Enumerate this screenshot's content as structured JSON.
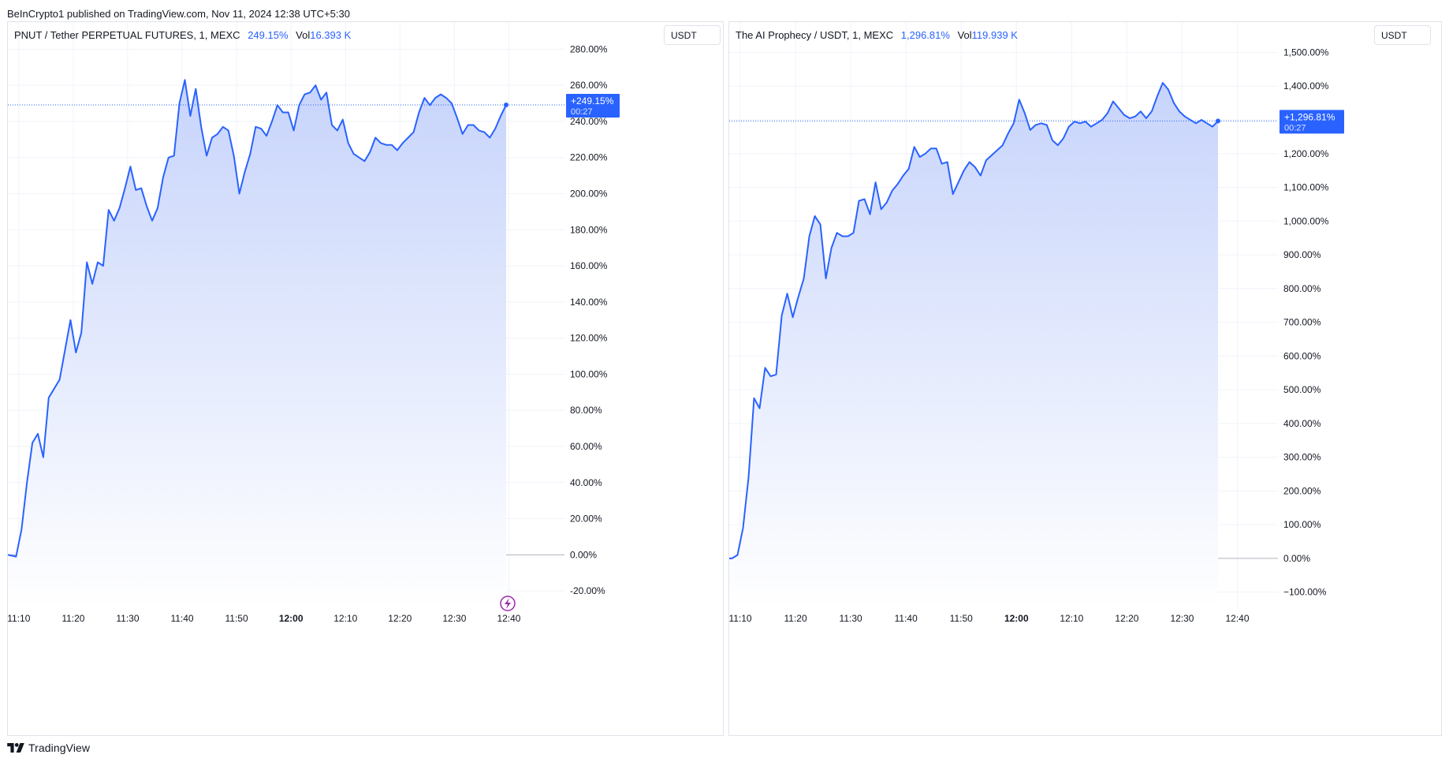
{
  "header": {
    "published": "BeInCrypto1 published on TradingView.com, Nov 11, 2024 12:38 UTC+5:30"
  },
  "footer": {
    "brand": "TradingView"
  },
  "colors": {
    "line": "#2962ff",
    "fill_top": "#c7d4fb",
    "fill_bottom": "#ffffff",
    "grid": "#f0f3fa",
    "axis_text": "#131722",
    "zero_line": "#b2b5be"
  },
  "charts": [
    {
      "legend": {
        "symbol": "PNUT / Tether PERPETUAL FUTURES, 1, MEXC",
        "change": "249.15%",
        "vol_label": "Vol",
        "vol_value": "16.393 K"
      },
      "currency_button": "USDT",
      "price_label": {
        "value": "+249.15%",
        "countdown": "00:27"
      },
      "x_ticks": [
        {
          "t": 10,
          "label": "11:10",
          "bold": false
        },
        {
          "t": 20,
          "label": "11:20",
          "bold": false
        },
        {
          "t": 30,
          "label": "11:30",
          "bold": false
        },
        {
          "t": 40,
          "label": "11:40",
          "bold": false
        },
        {
          "t": 50,
          "label": "11:50",
          "bold": false
        },
        {
          "t": 60,
          "label": "12:00",
          "bold": true
        },
        {
          "t": 70,
          "label": "12:10",
          "bold": false
        },
        {
          "t": 80,
          "label": "12:20",
          "bold": false
        },
        {
          "t": 90,
          "label": "12:30",
          "bold": false
        },
        {
          "t": 100,
          "label": "12:40",
          "bold": false
        }
      ],
      "y_ticks": [
        {
          "v": 280,
          "label": "280.00%"
        },
        {
          "v": 260,
          "label": "260.00%"
        },
        {
          "v": 240,
          "label": "240.00%"
        },
        {
          "v": 220,
          "label": "220.00%"
        },
        {
          "v": 200,
          "label": "200.00%"
        },
        {
          "v": 180,
          "label": "180.00%"
        },
        {
          "v": 160,
          "label": "160.00%"
        },
        {
          "v": 140,
          "label": "140.00%"
        },
        {
          "v": 120,
          "label": "120.00%"
        },
        {
          "v": 100,
          "label": "100.00%"
        },
        {
          "v": 80,
          "label": "80.00%"
        },
        {
          "v": 60,
          "label": "60.00%"
        },
        {
          "v": 40,
          "label": "40.00%"
        },
        {
          "v": 20,
          "label": "20.00%"
        },
        {
          "v": 0,
          "label": "0.00%"
        },
        {
          "v": -20,
          "label": "-20.00%"
        }
      ]
    },
    {
      "legend": {
        "symbol": "The AI Prophecy / USDT, 1, MEXC",
        "change": "1,296.81%",
        "vol_label": "Vol",
        "vol_value": "119.939 K"
      },
      "currency_button": "USDT",
      "price_label": {
        "value": "+1,296.81%",
        "countdown": "00:27"
      },
      "x_ticks": [
        {
          "t": 10,
          "label": "11:10",
          "bold": false
        },
        {
          "t": 20,
          "label": "11:20",
          "bold": false
        },
        {
          "t": 30,
          "label": "11:30",
          "bold": false
        },
        {
          "t": 40,
          "label": "11:40",
          "bold": false
        },
        {
          "t": 50,
          "label": "11:50",
          "bold": false
        },
        {
          "t": 60,
          "label": "12:00",
          "bold": true
        },
        {
          "t": 70,
          "label": "12:10",
          "bold": false
        },
        {
          "t": 80,
          "label": "12:20",
          "bold": false
        },
        {
          "t": 90,
          "label": "12:30",
          "bold": false
        },
        {
          "t": 100,
          "label": "12:40",
          "bold": false
        }
      ],
      "y_ticks": [
        {
          "v": 1500,
          "label": "1,500.00%"
        },
        {
          "v": 1400,
          "label": "1,400.00%"
        },
        {
          "v": 1300,
          "label": "1,300.00%"
        },
        {
          "v": 1200,
          "label": "1,200.00%"
        },
        {
          "v": 1100,
          "label": "1,100.00%"
        },
        {
          "v": 1000,
          "label": "1,000.00%"
        },
        {
          "v": 900,
          "label": "900.00%"
        },
        {
          "v": 800,
          "label": "800.00%"
        },
        {
          "v": 700,
          "label": "700.00%"
        },
        {
          "v": 600,
          "label": "600.00%"
        },
        {
          "v": 500,
          "label": "500.00%"
        },
        {
          "v": 400,
          "label": "400.00%"
        },
        {
          "v": 300,
          "label": "300.00%"
        },
        {
          "v": 200,
          "label": "200.00%"
        },
        {
          "v": 100,
          "label": "100.00%"
        },
        {
          "v": 0,
          "label": "0.00%"
        },
        {
          "v": -100,
          "label": "−100.00%"
        }
      ]
    }
  ],
  "chart_data": [
    {
      "type": "area",
      "title": "PNUT / Tether PERPETUAL FUTURES, 1, MEXC",
      "x_unit": "minute after 11:00 (Nov 11, 2024)",
      "ylabel": "USDT",
      "ylim": [
        -30,
        295
      ],
      "xlim": [
        8,
        105
      ],
      "last_value": 249.15,
      "points": [
        [
          8.0,
          0
        ],
        [
          9.5,
          -1
        ],
        [
          10.5,
          14
        ],
        [
          11.5,
          40
        ],
        [
          12.5,
          62
        ],
        [
          13.5,
          67
        ],
        [
          14.5,
          54
        ],
        [
          15.5,
          87
        ],
        [
          17.5,
          97
        ],
        [
          19.5,
          130
        ],
        [
          20.5,
          112
        ],
        [
          21.5,
          123
        ],
        [
          22.5,
          162
        ],
        [
          23.5,
          150
        ],
        [
          24.5,
          162
        ],
        [
          25.5,
          160
        ],
        [
          26.5,
          191
        ],
        [
          27.5,
          185
        ],
        [
          28.5,
          192
        ],
        [
          29.5,
          203
        ],
        [
          30.5,
          215
        ],
        [
          31.5,
          202
        ],
        [
          32.5,
          203
        ],
        [
          33.5,
          193
        ],
        [
          34.5,
          185
        ],
        [
          35.5,
          192
        ],
        [
          36.5,
          209
        ],
        [
          37.5,
          220
        ],
        [
          38.5,
          221
        ],
        [
          39.5,
          250
        ],
        [
          40.5,
          263
        ],
        [
          41.5,
          243
        ],
        [
          42.5,
          258
        ],
        [
          43.5,
          237
        ],
        [
          44.5,
          221
        ],
        [
          45.5,
          231
        ],
        [
          46.5,
          233
        ],
        [
          47.5,
          237
        ],
        [
          48.5,
          235
        ],
        [
          49.5,
          221
        ],
        [
          50.5,
          200
        ],
        [
          51.5,
          212
        ],
        [
          52.5,
          222
        ],
        [
          53.5,
          237
        ],
        [
          54.5,
          236
        ],
        [
          55.5,
          232
        ],
        [
          56.5,
          240
        ],
        [
          57.5,
          249
        ],
        [
          58.5,
          245
        ],
        [
          59.5,
          245
        ],
        [
          60.5,
          235
        ],
        [
          61.5,
          249
        ],
        [
          62.5,
          255
        ],
        [
          63.5,
          256
        ],
        [
          64.5,
          260
        ],
        [
          65.5,
          252
        ],
        [
          66.5,
          256
        ],
        [
          67.5,
          238
        ],
        [
          68.5,
          235
        ],
        [
          69.5,
          241
        ],
        [
          70.5,
          228
        ],
        [
          71.5,
          222
        ],
        [
          73.5,
          218
        ],
        [
          74.5,
          223
        ],
        [
          75.5,
          231
        ],
        [
          76.5,
          228
        ],
        [
          77.5,
          227
        ],
        [
          78.5,
          227
        ],
        [
          79.5,
          224
        ],
        [
          80.5,
          228
        ],
        [
          81.5,
          231
        ],
        [
          82.5,
          234
        ],
        [
          83.5,
          245
        ],
        [
          84.5,
          253
        ],
        [
          85.5,
          249
        ],
        [
          86.5,
          253
        ],
        [
          87.5,
          255
        ],
        [
          88.5,
          253
        ],
        [
          89.5,
          250
        ],
        [
          90.5,
          242
        ],
        [
          91.5,
          233
        ],
        [
          92.5,
          238
        ],
        [
          93.5,
          238
        ],
        [
          94.5,
          235
        ],
        [
          95.5,
          234
        ],
        [
          96.5,
          231
        ],
        [
          97.5,
          236
        ],
        [
          98.5,
          243
        ],
        [
          99.5,
          249.15
        ]
      ]
    },
    {
      "type": "area",
      "title": "The AI Prophecy / USDT, 1, MEXC",
      "x_unit": "minute after 11:00 (Nov 11, 2024)",
      "ylabel": "USDT",
      "ylim": [
        -150,
        1590
      ],
      "xlim": [
        8,
        105
      ],
      "last_value": 1296.81,
      "points": [
        [
          8.0,
          0
        ],
        [
          8.5,
          0
        ],
        [
          9.5,
          10
        ],
        [
          10.5,
          90
        ],
        [
          11.5,
          240
        ],
        [
          12.5,
          475
        ],
        [
          13.5,
          445
        ],
        [
          14.5,
          565
        ],
        [
          15.5,
          540
        ],
        [
          16.5,
          545
        ],
        [
          17.5,
          720
        ],
        [
          18.5,
          785
        ],
        [
          19.5,
          715
        ],
        [
          20.5,
          775
        ],
        [
          21.5,
          830
        ],
        [
          22.5,
          955
        ],
        [
          23.5,
          1015
        ],
        [
          24.5,
          990
        ],
        [
          25.5,
          830
        ],
        [
          26.5,
          920
        ],
        [
          27.5,
          965
        ],
        [
          28.5,
          955
        ],
        [
          29.5,
          955
        ],
        [
          30.5,
          965
        ],
        [
          31.5,
          1060
        ],
        [
          32.5,
          1065
        ],
        [
          33.5,
          1020
        ],
        [
          34.5,
          1115
        ],
        [
          35.5,
          1035
        ],
        [
          36.5,
          1055
        ],
        [
          37.5,
          1090
        ],
        [
          38.5,
          1110
        ],
        [
          39.5,
          1135
        ],
        [
          40.5,
          1155
        ],
        [
          41.5,
          1220
        ],
        [
          42.5,
          1190
        ],
        [
          43.5,
          1200
        ],
        [
          44.5,
          1215
        ],
        [
          45.5,
          1215
        ],
        [
          46.5,
          1170
        ],
        [
          47.5,
          1175
        ],
        [
          48.5,
          1080
        ],
        [
          49.5,
          1115
        ],
        [
          50.5,
          1150
        ],
        [
          51.5,
          1175
        ],
        [
          52.5,
          1160
        ],
        [
          53.5,
          1135
        ],
        [
          54.5,
          1180
        ],
        [
          55.5,
          1195
        ],
        [
          56.5,
          1210
        ],
        [
          57.5,
          1225
        ],
        [
          58.5,
          1260
        ],
        [
          59.5,
          1290
        ],
        [
          60.5,
          1360
        ],
        [
          61.5,
          1320
        ],
        [
          62.5,
          1270
        ],
        [
          63.5,
          1285
        ],
        [
          64.5,
          1290
        ],
        [
          65.5,
          1285
        ],
        [
          66.5,
          1240
        ],
        [
          67.5,
          1225
        ],
        [
          68.5,
          1245
        ],
        [
          69.5,
          1280
        ],
        [
          70.5,
          1295
        ],
        [
          71.5,
          1290
        ],
        [
          72.5,
          1295
        ],
        [
          73.5,
          1280
        ],
        [
          74.5,
          1290
        ],
        [
          75.5,
          1300
        ],
        [
          76.5,
          1320
        ],
        [
          77.5,
          1355
        ],
        [
          78.5,
          1335
        ],
        [
          79.5,
          1315
        ],
        [
          80.5,
          1305
        ],
        [
          81.5,
          1310
        ],
        [
          82.5,
          1325
        ],
        [
          83.5,
          1305
        ],
        [
          84.5,
          1325
        ],
        [
          85.5,
          1370
        ],
        [
          86.5,
          1410
        ],
        [
          87.5,
          1390
        ],
        [
          88.5,
          1350
        ],
        [
          89.5,
          1325
        ],
        [
          90.5,
          1310
        ],
        [
          91.5,
          1300
        ],
        [
          92.5,
          1290
        ],
        [
          93.5,
          1300
        ],
        [
          94.5,
          1290
        ],
        [
          95.5,
          1280
        ],
        [
          96.5,
          1296.81
        ]
      ]
    }
  ]
}
